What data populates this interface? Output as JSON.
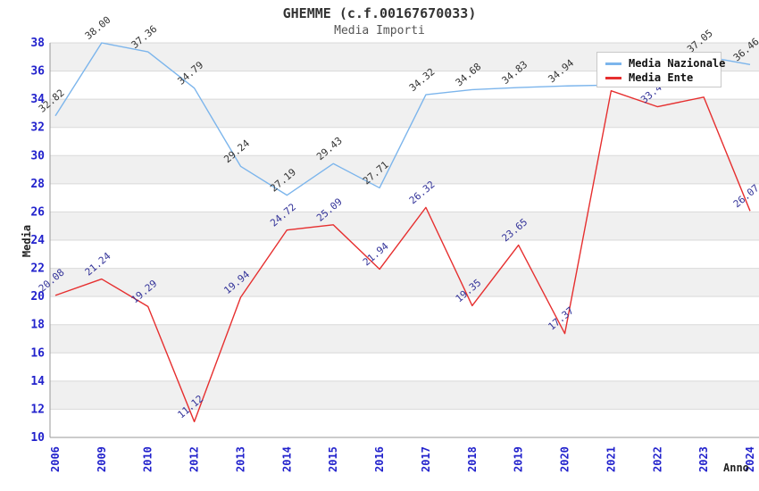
{
  "title": "GHEMME (c.f.00167670033)",
  "subtitle": "Media Importi",
  "ylabel": "Media",
  "xlabel": "Anno",
  "legend": {
    "items": [
      {
        "label": "Media Nazionale",
        "color": "#7cb5ec"
      },
      {
        "label": "Media Ente",
        "color": "#e62f2f"
      }
    ]
  },
  "chart_data": {
    "type": "line",
    "title": "GHEMME (c.f.00167670033)",
    "subtitle": "Media Importi",
    "xlabel": "Anno",
    "ylabel": "Media",
    "categories": [
      "2006",
      "2009",
      "2010",
      "2012",
      "2013",
      "2014",
      "2015",
      "2016",
      "2017",
      "2018",
      "2019",
      "2020",
      "2021",
      "2022",
      "2023",
      "2024"
    ],
    "yticks": [
      10,
      12,
      14,
      16,
      18,
      20,
      22,
      24,
      26,
      28,
      30,
      32,
      34,
      36,
      38
    ],
    "ylim": [
      10,
      38
    ],
    "grid": "horizontal-bands",
    "legend_position": "top-right",
    "series": [
      {
        "name": "Media Nazionale",
        "color": "#7cb5ec",
        "label_color": "#333333",
        "values": [
          32.82,
          38.0,
          37.36,
          34.79,
          29.24,
          27.19,
          29.43,
          27.71,
          34.32,
          34.68,
          34.83,
          34.94,
          35.0,
          35.9,
          37.05,
          36.46
        ],
        "labels_hidden_by_legend": [
          12,
          13
        ]
      },
      {
        "name": "Media Ente",
        "color": "#e62f2f",
        "label_color": "#333399",
        "values": [
          20.08,
          21.24,
          19.29,
          11.12,
          19.94,
          24.72,
          25.09,
          21.94,
          26.32,
          19.35,
          23.65,
          17.37,
          34.6,
          33.47,
          34.15,
          26.07
        ],
        "labels_hidden_by_legend": [
          12,
          14
        ]
      }
    ]
  },
  "colors": {
    "band_gray": "#f0f0f0",
    "gridline": "#d9d9d9",
    "axis_line": "#999999",
    "tick_label": "#2222cc",
    "title": "#333333",
    "subtitle": "#555555"
  }
}
